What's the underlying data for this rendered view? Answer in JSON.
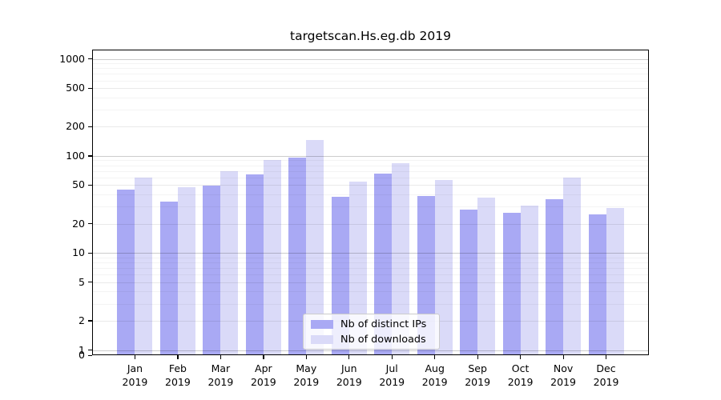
{
  "title": "targetscan.Hs.eg.db 2019",
  "chart_data": {
    "type": "bar",
    "title": "targetscan.Hs.eg.db 2019",
    "categories": [
      "Jan",
      "Feb",
      "Mar",
      "Apr",
      "May",
      "Jun",
      "Jul",
      "Aug",
      "Sep",
      "Oct",
      "Nov",
      "Dec"
    ],
    "x_year": "2019",
    "series": [
      {
        "name": "Nb of distinct IPs",
        "color": "#a9a9f4",
        "values": [
          45,
          34,
          49,
          64,
          96,
          38,
          66,
          39,
          28,
          26,
          36,
          25
        ]
      },
      {
        "name": "Nb of downloads",
        "color": "#dadaf8",
        "values": [
          60,
          48,
          69,
          91,
          145,
          54,
          84,
          56,
          37,
          31,
          60,
          29
        ]
      }
    ],
    "y_scale": "log",
    "y_ticks": [
      1000,
      500,
      200,
      100,
      50,
      20,
      10,
      5,
      2,
      1,
      0
    ],
    "ylim": [
      0,
      1380
    ],
    "grid": true,
    "legend_position": "lower-center-inside"
  },
  "style_colors": {
    "bar_ips": "#a9a9f4",
    "bar_downloads": "#dadaf8",
    "grid_decade": "rgba(0,0,0,0.20)",
    "grid_major": "rgba(0,0,0,0.085)",
    "grid_minor": "rgba(0,0,0,0.045)",
    "spine": "#000000"
  }
}
